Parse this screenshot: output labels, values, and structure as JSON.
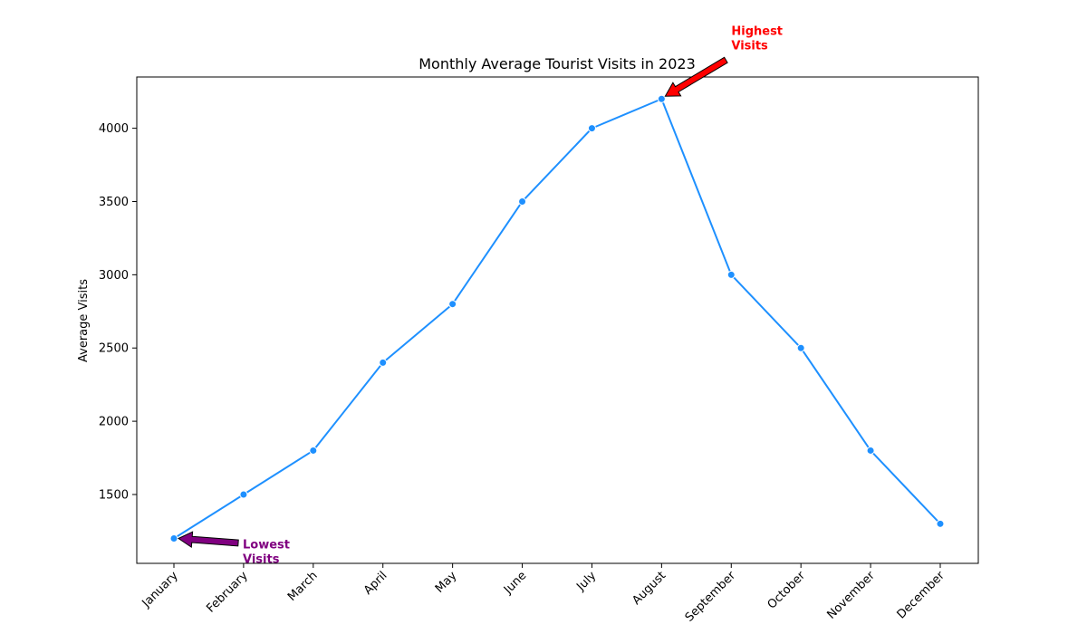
{
  "chart_data": {
    "type": "line",
    "title": "Monthly Average Tourist Visits in 2023",
    "xlabel": "",
    "ylabel": "Average Visits",
    "categories": [
      "January",
      "February",
      "March",
      "April",
      "May",
      "June",
      "July",
      "August",
      "September",
      "October",
      "November",
      "December"
    ],
    "series": [
      {
        "values": [
          1200,
          1500,
          1800,
          2400,
          2800,
          3500,
          4000,
          4200,
          3000,
          2500,
          1800,
          1300
        ],
        "color": "#1e90ff",
        "marker": "circle"
      }
    ],
    "ylim": [
      1030,
      4350
    ],
    "yticks": [
      1500,
      2000,
      2500,
      3000,
      3500,
      4000
    ],
    "xtick_rotation": 45,
    "grid": false,
    "legend": "none",
    "annotations": [
      {
        "label_lines": [
          "Highest",
          "Visits"
        ],
        "target_category": "August",
        "target_value": 4200,
        "color": "#ff0000",
        "arrow_color": "#ff0000"
      },
      {
        "label_lines": [
          "Lowest",
          "Visits"
        ],
        "target_category": "January",
        "target_value": 1200,
        "color": "#800080",
        "arrow_color": "#800080"
      }
    ]
  }
}
